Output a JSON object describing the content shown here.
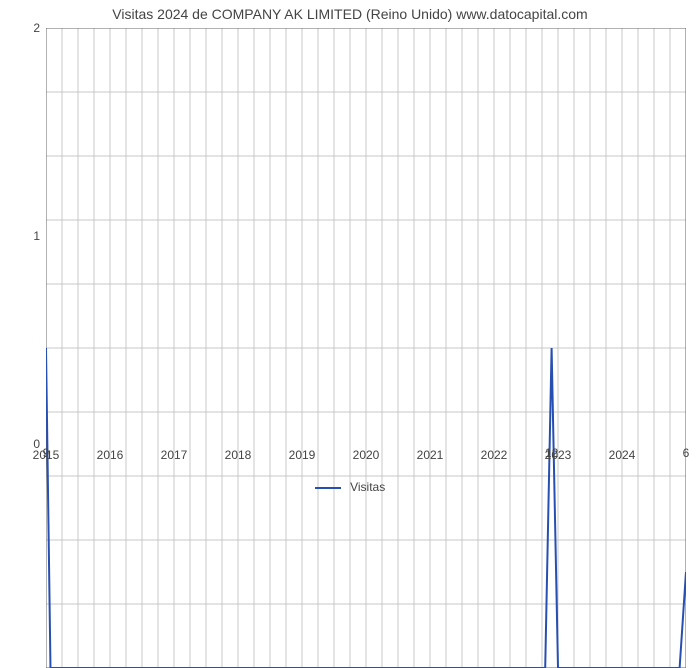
{
  "chart": {
    "type": "line",
    "title": "Visitas 2024 de COMPANY AK LIMITED (Reino Unido) www.datocapital.com",
    "title_fontsize": 14,
    "title_color": "#444444",
    "background_color": "#ffffff",
    "plot_border_color": "#646464",
    "grid_color": "#c8c8c8",
    "grid_on": true,
    "x": {
      "type": "time",
      "min_year": 2015,
      "max_year": 2025,
      "tick_labels": [
        "2015",
        "2016",
        "2017",
        "2018",
        "2019",
        "2020",
        "2021",
        "2022",
        "2023",
        "2024"
      ],
      "tick_years": [
        2015,
        2016,
        2017,
        2018,
        2019,
        2020,
        2021,
        2022,
        2023,
        2024
      ],
      "minor_per_year": 4,
      "tick_fontsize": 12,
      "label_color": "#444444"
    },
    "y": {
      "min": 0,
      "max": 2,
      "tick_values": [
        0,
        1,
        2
      ],
      "minor_between": 4,
      "tick_fontsize": 12,
      "label_color": "#444444"
    },
    "series": {
      "name": "Visitas",
      "color": "#274fb2",
      "line_width": 2,
      "points_year_value": [
        [
          2015.0,
          1.0
        ],
        [
          2015.07,
          0.0
        ],
        [
          2022.8,
          0.0
        ],
        [
          2022.9,
          1.0
        ],
        [
          2023.0,
          0.0
        ],
        [
          2024.9,
          0.0
        ],
        [
          2025.0,
          0.3
        ]
      ]
    },
    "value_labels": [
      {
        "year": 2015.0,
        "y": 0,
        "text": "9",
        "dy_below": true
      },
      {
        "year": 2022.9,
        "y": 0,
        "text": "12",
        "dy_below": true
      },
      {
        "year": 2025.0,
        "y": 0,
        "text": "6",
        "dy_below": true
      }
    ],
    "legend": {
      "label": "Visitas",
      "color": "#274fb2"
    }
  }
}
